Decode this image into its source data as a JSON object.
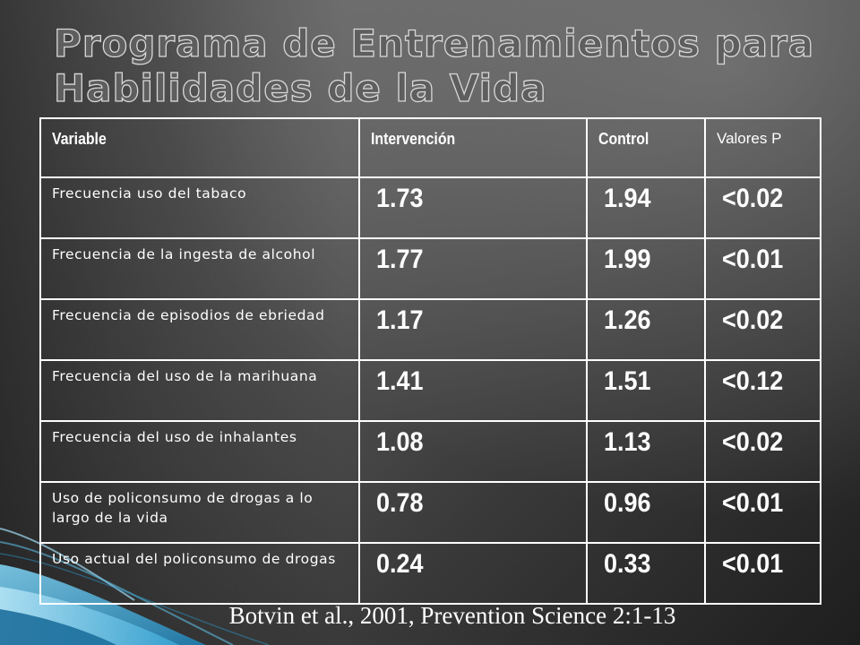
{
  "slide": {
    "title": "Programa de Entrenamientos para Habilidades de la Vida",
    "citation": "Botvin et al., 2001, Prevention Science 2:1-13"
  },
  "table": {
    "headers": [
      "Variable",
      "Intervención",
      "Control",
      "Valores P"
    ],
    "rows": [
      {
        "variable": "Frecuencia uso del tabaco",
        "intervencion": "1.73",
        "control": "1.94",
        "p": "<0.02"
      },
      {
        "variable": "Frecuencia de la ingesta de alcohol",
        "intervencion": "1.77",
        "control": "1.99",
        "p": "<0.01"
      },
      {
        "variable": "Frecuencia de episodios de ebriedad",
        "intervencion": "1.17",
        "control": "1.26",
        "p": "<0.02"
      },
      {
        "variable": "Frecuencia del uso de la marihuana",
        "intervencion": "1.41",
        "control": "1.51",
        "p": "<0.12"
      },
      {
        "variable": "Frecuencia del uso de inhalantes",
        "intervencion": "1.08",
        "control": "1.13",
        "p": "<0.02"
      },
      {
        "variable": "Uso de policonsumo de drogas a lo largo de la vida",
        "intervencion": "0.78",
        "control": "0.96",
        "p": "<0.01"
      },
      {
        "variable": "Uso actual del policonsumo de drogas",
        "intervencion": "0.24",
        "control": "0.33",
        "p": "<0.01"
      }
    ]
  },
  "colors": {
    "text": "#ffffff",
    "border": "#ffffff",
    "accent_blue": "#3aa7d6"
  }
}
